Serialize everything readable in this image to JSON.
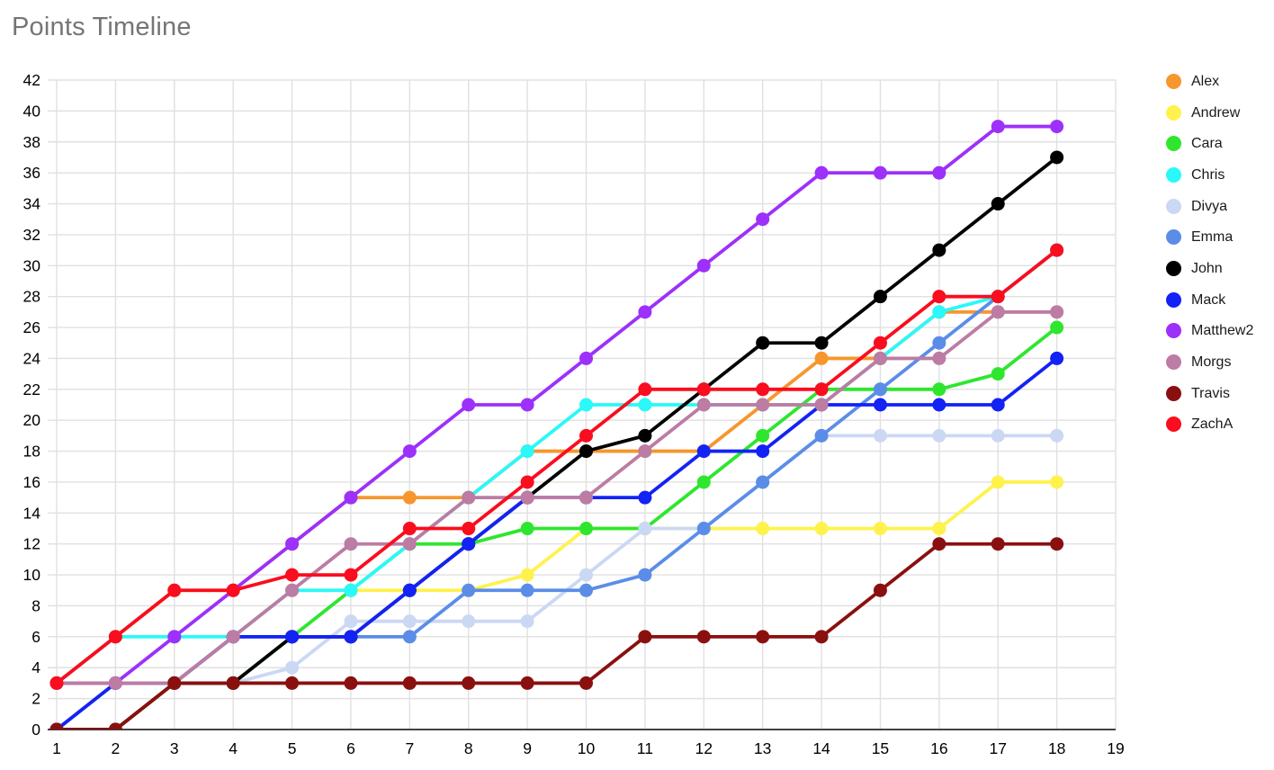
{
  "title": "Points Timeline",
  "chart_data": {
    "type": "line",
    "title": "Points Timeline",
    "xlabel": "",
    "ylabel": "",
    "xlim": [
      1,
      19
    ],
    "ylim": [
      0,
      42
    ],
    "grid": true,
    "legend_position": "right",
    "x_ticks": [
      1,
      2,
      3,
      4,
      5,
      6,
      7,
      8,
      9,
      10,
      11,
      12,
      13,
      14,
      15,
      16,
      17,
      18,
      19
    ],
    "y_ticks": [
      0,
      2,
      4,
      6,
      8,
      10,
      12,
      14,
      16,
      18,
      20,
      22,
      24,
      26,
      28,
      30,
      32,
      34,
      36,
      38,
      40,
      42
    ],
    "x": [
      1,
      2,
      3,
      4,
      5,
      6,
      7,
      8,
      9,
      10,
      11,
      12,
      13,
      14,
      15,
      16,
      17,
      18
    ],
    "series": [
      {
        "name": "Alex",
        "color": "#F7962D",
        "values": [
          3,
          6,
          9,
          9,
          12,
          15,
          15,
          15,
          18,
          18,
          18,
          18,
          21,
          24,
          24,
          27,
          27,
          27
        ]
      },
      {
        "name": "Andrew",
        "color": "#FFF24D",
        "values": [
          3,
          3,
          3,
          6,
          9,
          9,
          9,
          9,
          10,
          13,
          13,
          13,
          13,
          13,
          13,
          13,
          16,
          16
        ]
      },
      {
        "name": "Cara",
        "color": "#2EE62E",
        "values": [
          0,
          0,
          3,
          3,
          6,
          9,
          12,
          12,
          13,
          13,
          13,
          16,
          19,
          22,
          22,
          22,
          23,
          26
        ]
      },
      {
        "name": "Chris",
        "color": "#2BF8F8",
        "values": [
          3,
          6,
          6,
          6,
          9,
          9,
          12,
          15,
          18,
          21,
          21,
          21,
          21,
          21,
          24,
          27,
          28,
          31
        ]
      },
      {
        "name": "Divya",
        "color": "#CBD8F4",
        "values": [
          0,
          3,
          3,
          3,
          4,
          7,
          7,
          7,
          7,
          10,
          13,
          13,
          16,
          19,
          19,
          19,
          19,
          19
        ]
      },
      {
        "name": "Emma",
        "color": "#5B8DE8",
        "values": [
          0,
          3,
          3,
          6,
          6,
          6,
          6,
          9,
          9,
          9,
          10,
          13,
          16,
          19,
          22,
          25,
          28,
          31
        ]
      },
      {
        "name": "John",
        "color": "#000000",
        "values": [
          0,
          0,
          3,
          3,
          6,
          6,
          9,
          12,
          15,
          18,
          19,
          22,
          25,
          25,
          28,
          31,
          34,
          37
        ]
      },
      {
        "name": "Mack",
        "color": "#1322F5",
        "values": [
          0,
          3,
          3,
          6,
          6,
          6,
          9,
          12,
          15,
          15,
          15,
          18,
          18,
          21,
          21,
          21,
          21,
          24
        ]
      },
      {
        "name": "Matthew2",
        "color": "#9D30FA",
        "values": [
          3,
          3,
          6,
          9,
          12,
          15,
          18,
          21,
          21,
          24,
          27,
          30,
          33,
          36,
          36,
          36,
          39,
          39
        ]
      },
      {
        "name": "Morgs",
        "color": "#BC7CA4",
        "values": [
          3,
          3,
          3,
          6,
          9,
          12,
          12,
          15,
          15,
          15,
          18,
          21,
          21,
          21,
          24,
          24,
          27,
          27
        ]
      },
      {
        "name": "Travis",
        "color": "#8A1010",
        "values": [
          0,
          0,
          3,
          3,
          3,
          3,
          3,
          3,
          3,
          3,
          6,
          6,
          6,
          6,
          9,
          12,
          12,
          12
        ]
      },
      {
        "name": "ZachA",
        "color": "#FA0D1E",
        "values": [
          3,
          6,
          9,
          9,
          10,
          10,
          13,
          13,
          16,
          19,
          22,
          22,
          22,
          22,
          25,
          28,
          28,
          31
        ]
      }
    ],
    "colors": {
      "grid": "#E0E0E0",
      "axis": "#424242",
      "tick_label": "#000000",
      "title": "#757575"
    }
  }
}
